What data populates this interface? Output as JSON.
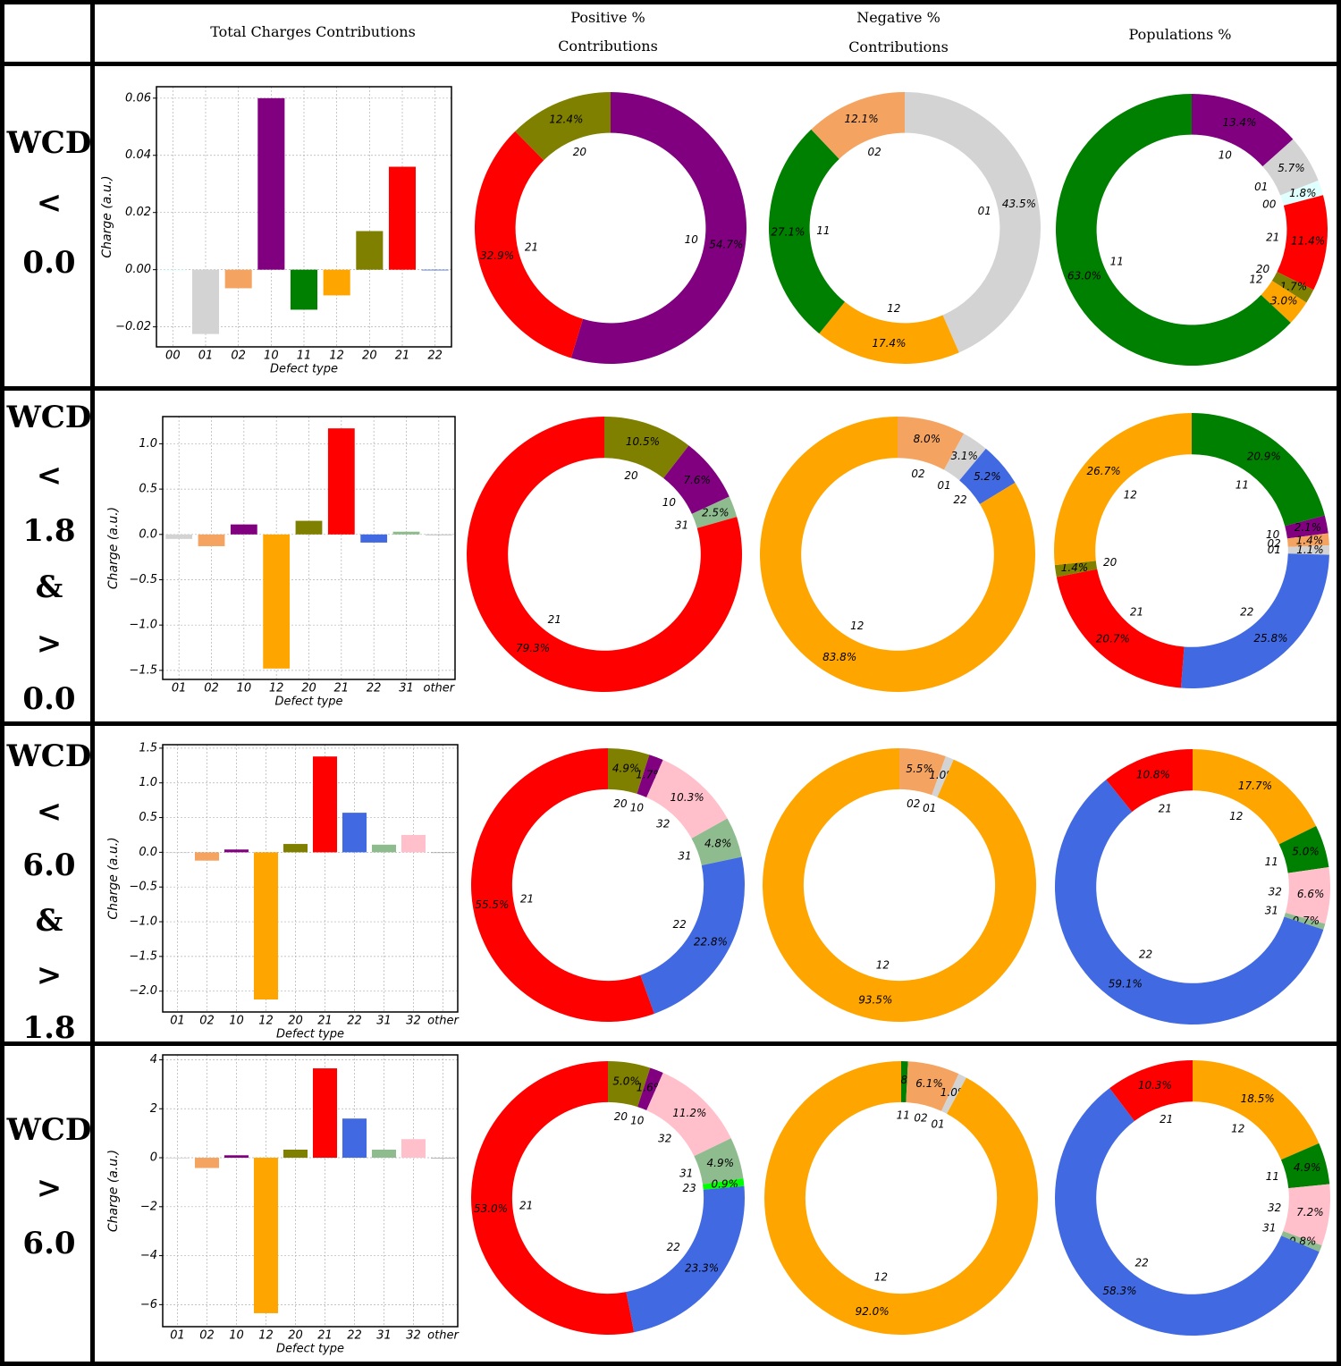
{
  "headers": {
    "total": "Total  Charges  Contributions",
    "positive_1": "Positive  %",
    "positive_2": "Contributions",
    "negative_1": "Negative  %",
    "negative_2": "Contributions",
    "population": "Populations  %"
  },
  "colors": {
    "00": "#e0ffff",
    "01": "#d3d3d3",
    "02": "#f4a460",
    "10": "#800080",
    "11": "#008000",
    "12": "#ffa500",
    "20": "#808000",
    "21": "#ff0000",
    "22": "#4169e1",
    "23": "#00ff00",
    "31": "#8fbc8f",
    "32": "#ffc0cb",
    "other": "#a9a9a9"
  },
  "rows": [
    {
      "label_lines": [
        "WCD",
        "<",
        "0.0"
      ]
    },
    {
      "label_lines": [
        "WCD",
        "<",
        "1.8",
        "&",
        ">",
        "0.0"
      ]
    },
    {
      "label_lines": [
        "WCD",
        "<",
        "6.0",
        "&",
        ">",
        "1.8"
      ]
    },
    {
      "label_lines": [
        "WCD",
        ">",
        "6.0"
      ]
    }
  ],
  "chart_data": [
    {
      "type": "bar",
      "row": 0,
      "xlabel": "Defect type",
      "ylabel": "Charge (a.u.)",
      "categories": [
        "00",
        "01",
        "02",
        "10",
        "11",
        "12",
        "20",
        "21",
        "22"
      ],
      "values": [
        0.0,
        -0.0225,
        -0.0065,
        0.06,
        -0.014,
        -0.009,
        0.0135,
        0.036,
        0.0
      ],
      "ylim": [
        -0.027,
        0.064
      ],
      "yticks": [
        -0.02,
        0.0,
        0.02,
        0.04,
        0.06
      ],
      "ytick_labels": [
        "−0.02",
        "0.00",
        "0.02",
        "0.04",
        "0.06"
      ],
      "grid": true
    },
    {
      "type": "pie",
      "row": 0,
      "column": "Positive % Contributions",
      "slices": [
        {
          "label": "10",
          "value": 54.7,
          "text": "54.7%"
        },
        {
          "label": "21",
          "value": 32.9,
          "text": "32.9%"
        },
        {
          "label": "20",
          "value": 12.4,
          "text": "12.4%"
        }
      ]
    },
    {
      "type": "pie",
      "row": 0,
      "column": "Negative % Contributions",
      "slices": [
        {
          "label": "01",
          "value": 43.5,
          "text": "43.5%"
        },
        {
          "label": "12",
          "value": 17.4,
          "text": "17.4%"
        },
        {
          "label": "11",
          "value": 27.1,
          "text": "27.1%"
        },
        {
          "label": "02",
          "value": 12.1,
          "text": "12.1%"
        }
      ]
    },
    {
      "type": "pie",
      "row": 0,
      "column": "Populations %",
      "slices": [
        {
          "label": "10",
          "value": 13.4,
          "text": "13.4%"
        },
        {
          "label": "01",
          "value": 5.7,
          "text": "5.7%"
        },
        {
          "label": "00",
          "value": 1.8,
          "text": "1.8%"
        },
        {
          "label": "21",
          "value": 11.4,
          "text": "11.4%"
        },
        {
          "label": "20",
          "value": 1.7,
          "text": "1.7%"
        },
        {
          "label": "12",
          "value": 3.0,
          "text": "3.0%"
        },
        {
          "label": "11",
          "value": 63.0,
          "text": "63.0%"
        }
      ]
    },
    {
      "type": "bar",
      "row": 1,
      "xlabel": "Defect type",
      "ylabel": "Charge (a.u.)",
      "categories": [
        "01",
        "02",
        "10",
        "12",
        "20",
        "21",
        "22",
        "31",
        "other"
      ],
      "values": [
        -0.05,
        -0.13,
        0.11,
        -1.48,
        0.15,
        1.17,
        -0.09,
        0.03,
        0.0
      ],
      "ylim": [
        -1.6,
        1.3
      ],
      "yticks": [
        -1.5,
        -1.0,
        -0.5,
        0.0,
        0.5,
        1.0
      ],
      "ytick_labels": [
        "−1.5",
        "−1.0",
        "−0.5",
        "0.0",
        "0.5",
        "1.0"
      ],
      "grid": true
    },
    {
      "type": "pie",
      "row": 1,
      "column": "Positive % Contributions",
      "slices": [
        {
          "label": "20",
          "value": 10.5,
          "text": "10.5%"
        },
        {
          "label": "10",
          "value": 7.6,
          "text": "7.6%"
        },
        {
          "label": "31",
          "value": 2.5,
          "text": "2.5%"
        },
        {
          "label": "21",
          "value": 79.3,
          "text": "79.3%"
        }
      ]
    },
    {
      "type": "pie",
      "row": 1,
      "column": "Negative % Contributions",
      "slices": [
        {
          "label": "02",
          "value": 8.0,
          "text": "8.0%"
        },
        {
          "label": "01",
          "value": 3.1,
          "text": "3.1%"
        },
        {
          "label": "22",
          "value": 5.2,
          "text": "5.2%"
        },
        {
          "label": "12",
          "value": 83.8,
          "text": "83.8%"
        }
      ]
    },
    {
      "type": "pie",
      "row": 1,
      "column": "Populations %",
      "slices": [
        {
          "label": "11",
          "value": 20.9,
          "text": "20.9%"
        },
        {
          "label": "10",
          "value": 2.1,
          "text": "2.1%"
        },
        {
          "label": "02",
          "value": 1.4,
          "text": "1.4%"
        },
        {
          "label": "01",
          "value": 1.1,
          "text": "1.1%"
        },
        {
          "label": "22",
          "value": 25.8,
          "text": "25.8%"
        },
        {
          "label": "21",
          "value": 20.7,
          "text": "20.7%"
        },
        {
          "label": "20",
          "value": 1.4,
          "text": "1.4%"
        },
        {
          "label": "12",
          "value": 26.7,
          "text": "26.7%"
        }
      ]
    },
    {
      "type": "bar",
      "row": 2,
      "xlabel": "Defect type",
      "ylabel": "Charge (a.u.)",
      "categories": [
        "01",
        "02",
        "10",
        "12",
        "20",
        "21",
        "22",
        "31",
        "32",
        "other"
      ],
      "values": [
        -0.01,
        -0.12,
        0.04,
        -2.12,
        0.12,
        1.38,
        0.57,
        0.11,
        0.25,
        -0.01
      ],
      "ylim": [
        -2.3,
        1.55
      ],
      "yticks": [
        -2.0,
        -1.5,
        -1.0,
        -0.5,
        0.0,
        0.5,
        1.0,
        1.5
      ],
      "ytick_labels": [
        "−2.0",
        "−1.5",
        "−1.0",
        "−0.5",
        "0.0",
        "0.5",
        "1.0",
        "1.5"
      ],
      "grid": true
    },
    {
      "type": "pie",
      "row": 2,
      "column": "Positive % Contributions",
      "slices": [
        {
          "label": "20",
          "value": 4.9,
          "text": "4.9%"
        },
        {
          "label": "10",
          "value": 1.7,
          "text": "1.7%"
        },
        {
          "label": "32",
          "value": 10.3,
          "text": "10.3%"
        },
        {
          "label": "31",
          "value": 4.8,
          "text": "4.8%"
        },
        {
          "label": "22",
          "value": 22.8,
          "text": "22.8%"
        },
        {
          "label": "21",
          "value": 55.5,
          "text": "55.5%"
        }
      ]
    },
    {
      "type": "pie",
      "row": 2,
      "column": "Negative % Contributions",
      "slices": [
        {
          "label": "02",
          "value": 5.5,
          "text": "5.5%"
        },
        {
          "label": "01",
          "value": 1.0,
          "text": "1.0%"
        },
        {
          "label": "12",
          "value": 93.5,
          "text": "93.5%"
        }
      ]
    },
    {
      "type": "pie",
      "row": 2,
      "column": "Populations %",
      "slices": [
        {
          "label": "12",
          "value": 17.7,
          "text": "17.7%"
        },
        {
          "label": "11",
          "value": 5.0,
          "text": "5.0%"
        },
        {
          "label": "32",
          "value": 6.6,
          "text": "6.6%"
        },
        {
          "label": "31",
          "value": 0.7,
          "text": "0.7%"
        },
        {
          "label": "22",
          "value": 59.1,
          "text": "59.1%"
        },
        {
          "label": "21",
          "value": 10.8,
          "text": "10.8%"
        }
      ]
    },
    {
      "type": "bar",
      "row": 3,
      "xlabel": "Defect type",
      "ylabel": "Charge (a.u.)",
      "categories": [
        "01",
        "02",
        "10",
        "12",
        "20",
        "21",
        "22",
        "31",
        "32",
        "other"
      ],
      "values": [
        -0.03,
        -0.42,
        0.1,
        -6.35,
        0.33,
        3.65,
        1.6,
        0.33,
        0.76,
        -0.03
      ],
      "ylim": [
        -6.9,
        4.2
      ],
      "yticks": [
        -6,
        -4,
        -2,
        0,
        2,
        4
      ],
      "ytick_labels": [
        "−6",
        "−4",
        "−2",
        "0",
        "2",
        "4"
      ],
      "grid": true
    },
    {
      "type": "pie",
      "row": 3,
      "column": "Positive % Contributions",
      "slices": [
        {
          "label": "20",
          "value": 5.0,
          "text": "5.0%"
        },
        {
          "label": "10",
          "value": 1.6,
          "text": "1.6%"
        },
        {
          "label": "32",
          "value": 11.2,
          "text": "11.2%"
        },
        {
          "label": "31",
          "value": 4.9,
          "text": "4.9%"
        },
        {
          "label": "23",
          "value": 0.9,
          "text": "0.9%"
        },
        {
          "label": "22",
          "value": 23.3,
          "text": "23.3%"
        },
        {
          "label": "21",
          "value": 53.0,
          "text": "53.0%"
        }
      ]
    },
    {
      "type": "pie",
      "row": 3,
      "column": "Negative % Contributions",
      "slices": [
        {
          "label": "11",
          "value": 0.8,
          "text": "0.8%"
        },
        {
          "label": "02",
          "value": 6.1,
          "text": "6.1%"
        },
        {
          "label": "01",
          "value": 1.0,
          "text": "1.0%"
        },
        {
          "label": "12",
          "value": 92.0,
          "text": "92.0%"
        }
      ]
    },
    {
      "type": "pie",
      "row": 3,
      "column": "Populations %",
      "slices": [
        {
          "label": "12",
          "value": 18.5,
          "text": "18.5%"
        },
        {
          "label": "11",
          "value": 4.9,
          "text": "4.9%"
        },
        {
          "label": "32",
          "value": 7.2,
          "text": "7.2%"
        },
        {
          "label": "31",
          "value": 0.8,
          "text": "0.8%"
        },
        {
          "label": "22",
          "value": 58.3,
          "text": "58.3%"
        },
        {
          "label": "21",
          "value": 10.3,
          "text": "10.3%"
        }
      ]
    }
  ]
}
